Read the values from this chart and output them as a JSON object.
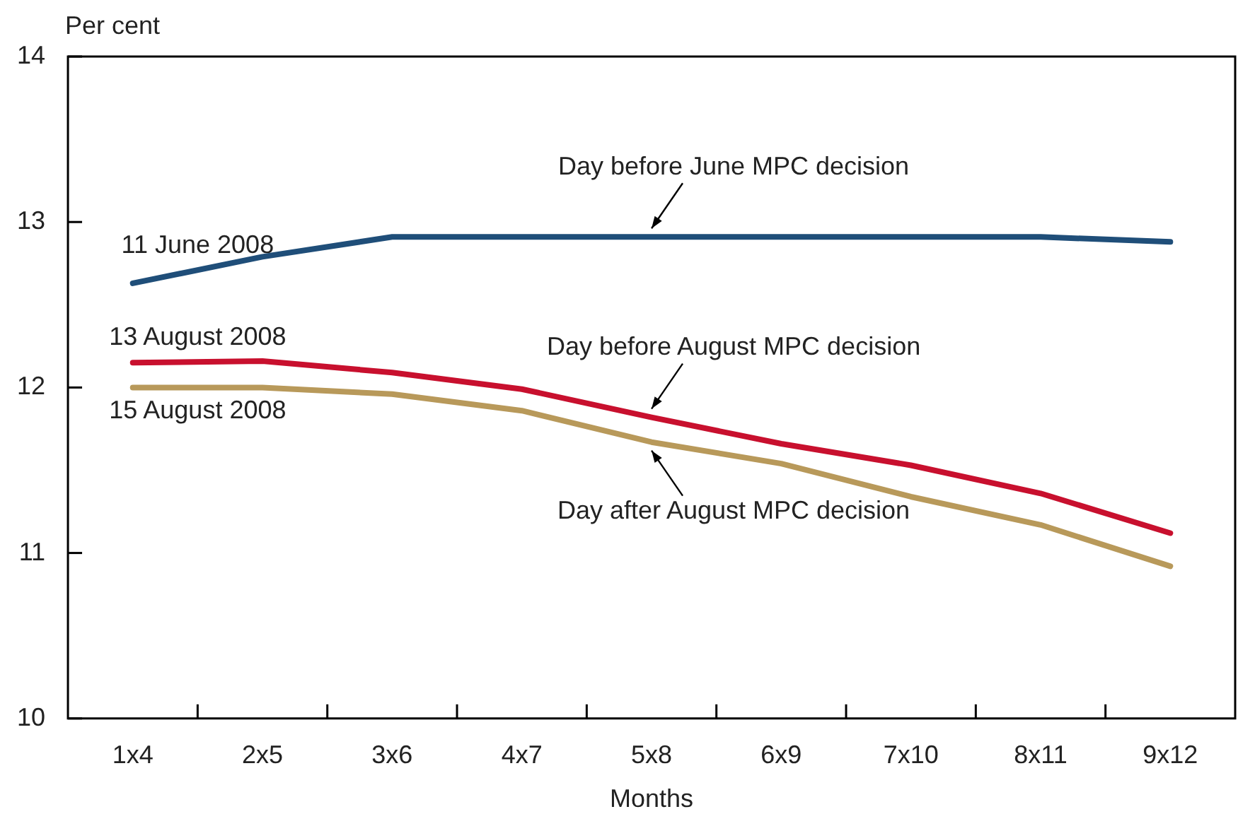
{
  "chart_data": {
    "type": "line",
    "ylabel": "Per cent",
    "xlabel": "Months",
    "categories": [
      "1x4",
      "2x5",
      "3x6",
      "4x7",
      "5x8",
      "6x9",
      "7x10",
      "8x11",
      "9x12"
    ],
    "series": [
      {
        "name": "11 June 2008",
        "color": "#1f4e79",
        "values": [
          12.63,
          12.79,
          12.91,
          12.91,
          12.91,
          12.91,
          12.91,
          12.91,
          12.88
        ]
      },
      {
        "name": "13 August 2008",
        "color": "#c8102e",
        "values": [
          12.15,
          12.16,
          12.09,
          11.99,
          11.82,
          11.66,
          11.53,
          11.36,
          11.12
        ]
      },
      {
        "name": "15 August 2008",
        "color": "#b8995a",
        "values": [
          12.0,
          12.0,
          11.96,
          11.86,
          11.67,
          11.54,
          11.34,
          11.17,
          10.92
        ]
      }
    ],
    "ylim": [
      10,
      14
    ],
    "yticks": [
      10,
      11,
      12,
      13,
      14
    ],
    "grid": false,
    "legend": false,
    "marker": "none",
    "line_style": "solid",
    "annotations": [
      {
        "text": "Day before June MPC decision",
        "x": "5x8",
        "y": 12.91
      },
      {
        "text": "Day before August MPC decision",
        "x": "5x8",
        "y": 11.82
      },
      {
        "text": "Day after August MPC decision",
        "x": "5x8",
        "y": 11.67
      }
    ]
  }
}
